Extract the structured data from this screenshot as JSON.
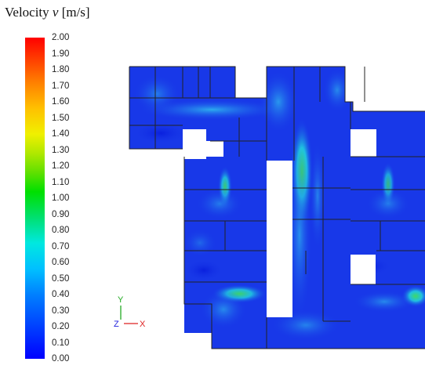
{
  "title": {
    "prefix": "Velocity ",
    "symbol": "v",
    "unit": " [m/s]"
  },
  "colorbar": {
    "min": 0.0,
    "max": 2.0,
    "ticks": [
      "2.00",
      "1.90",
      "1.80",
      "1.70",
      "1.60",
      "1.50",
      "1.40",
      "1.30",
      "1.20",
      "1.10",
      "1.00",
      "0.90",
      "0.80",
      "0.70",
      "0.60",
      "0.50",
      "0.40",
      "0.30",
      "0.20",
      "0.10",
      "0.00"
    ]
  },
  "triad": {
    "y_label": "Y",
    "z_label": "Z",
    "x_label": "X",
    "y_color": "#22aa22",
    "x_color": "#dd2222",
    "z_color": "#2222dd"
  },
  "colors": {
    "background_field": "#1838e8",
    "wall": "#222222"
  }
}
